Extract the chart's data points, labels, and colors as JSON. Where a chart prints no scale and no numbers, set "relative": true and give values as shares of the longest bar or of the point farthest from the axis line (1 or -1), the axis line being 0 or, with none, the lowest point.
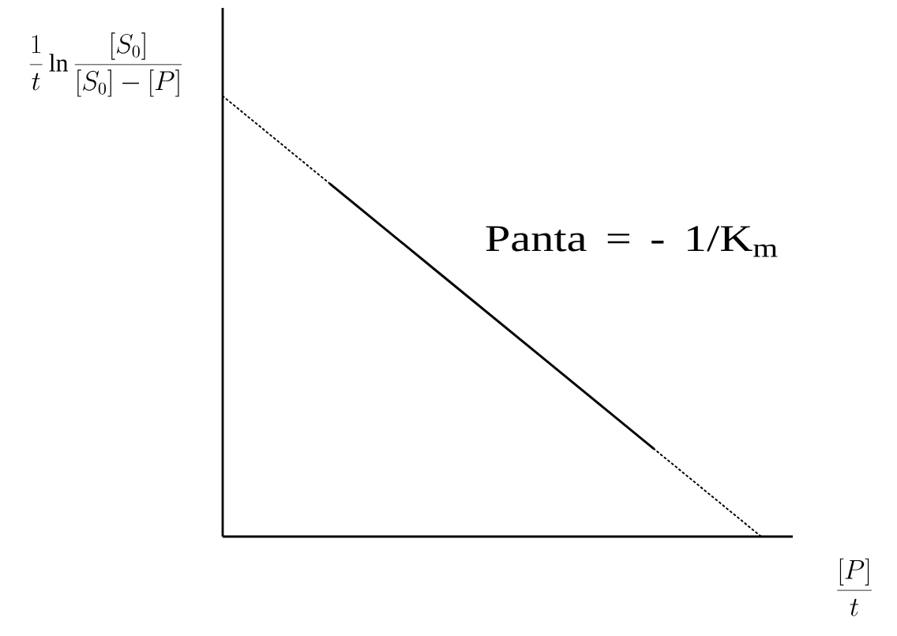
{
  "chart_data": {
    "type": "line",
    "relative": true,
    "xlabel": "\\frac{[P]}{t}",
    "ylabel": "\\frac{1}{t}\\ln\\frac{[S_0]}{[S_0]-[P]}",
    "annotations": [
      "Panta = - 1/K$_{m}$"
    ],
    "categories": [
      null,
      null,
      null,
      null,
      null,
      null
    ],
    "series": [
      {
        "color": "#000000",
        "line_style": "dotted",
        "values": [
          1,
          0.8,
          null,
          null,
          null,
          null
        ]
      },
      {
        "color": "#000000",
        "line_style": "solid",
        "values": [
          null,
          0.8,
          0.6,
          0.4,
          0.2,
          null
        ]
      },
      {
        "color": "#000000",
        "line_style": "dotted",
        "values": [
          null,
          null,
          null,
          null,
          0.2,
          0
        ]
      }
    ]
  }
}
